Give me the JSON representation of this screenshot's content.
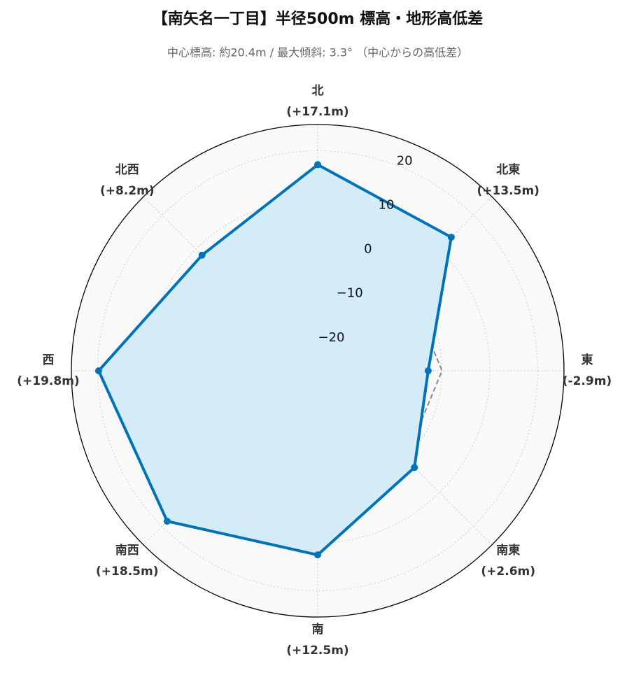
{
  "chart_data": {
    "type": "radar",
    "title": "【南矢名一丁目】半径500m 標高・地形高低差",
    "subtitle": "中心標高: 約20.4m / 最大傾斜: 3.3° （中心からの高低差）",
    "categories": [
      "北",
      "北東",
      "東",
      "南東",
      "南",
      "南西",
      "西",
      "北西"
    ],
    "series": [
      {
        "color": "#0072b8",
        "fill": "#d3ecf8",
        "values": [
          17.1,
          13.5,
          -2.9,
          2.6,
          12.5,
          18.5,
          19.8,
          8.2
        ],
        "value_labels": [
          "(+17.1m)",
          "(+13.5m)",
          "(-2.9m)",
          "(+2.6m)",
          "(+12.5m)",
          "(+18.5m)",
          "(+19.8m)",
          "(+8.2m)"
        ]
      }
    ],
    "reference_line": 0,
    "ylim": [
      -26,
      25.5
    ],
    "yticks": [
      {
        "value": -20,
        "label": "−20"
      },
      {
        "value": -10,
        "label": "−10"
      },
      0,
      10,
      20
    ],
    "grid": true
  }
}
